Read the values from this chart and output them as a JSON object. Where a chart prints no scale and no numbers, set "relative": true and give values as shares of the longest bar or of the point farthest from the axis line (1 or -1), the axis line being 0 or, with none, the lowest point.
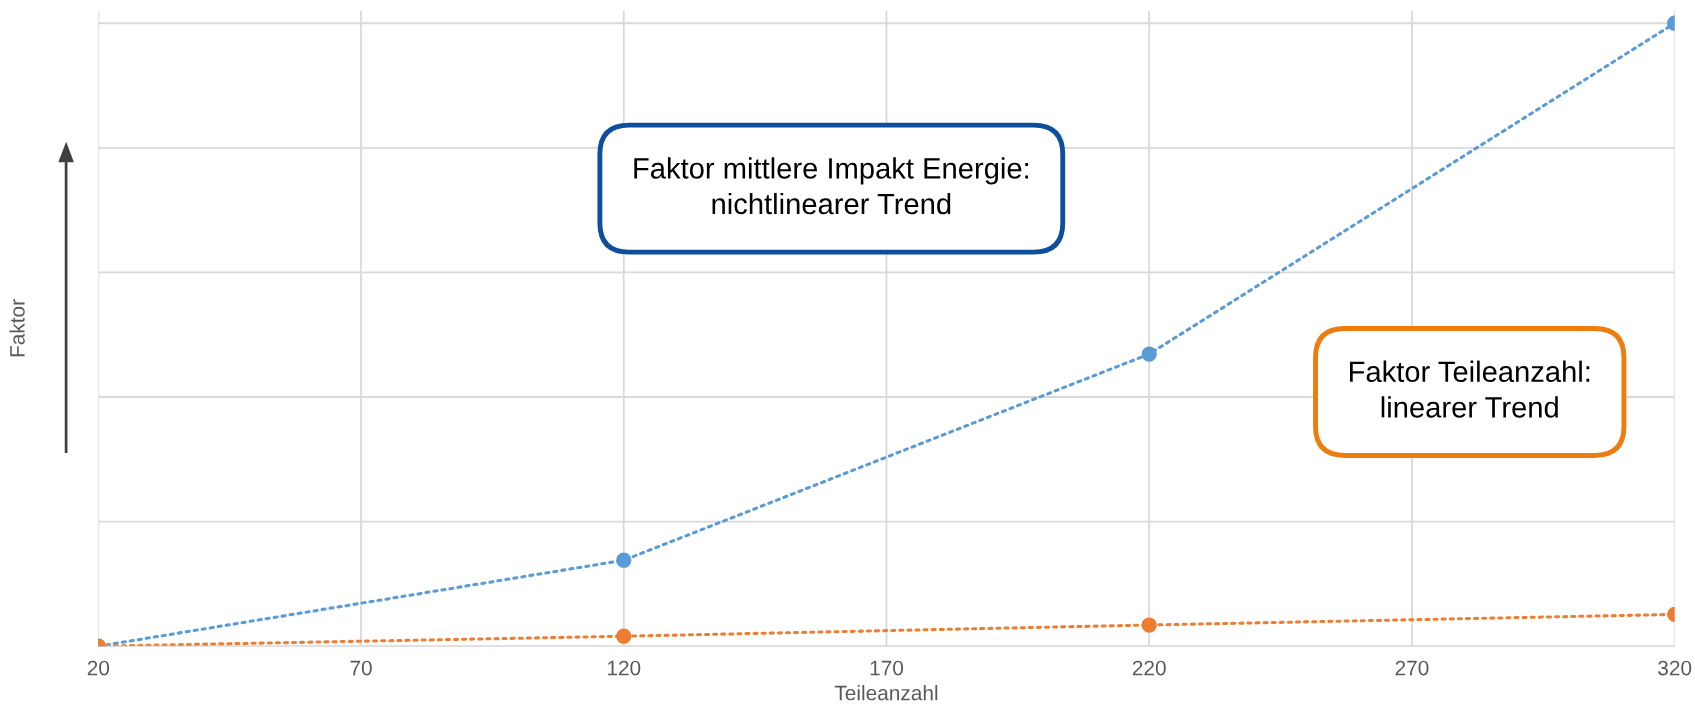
{
  "chart_data": {
    "type": "line",
    "xlabel": "Teileanzahl",
    "ylabel": "Faktor",
    "x": [
      20,
      120,
      220,
      320
    ],
    "xlim": [
      20,
      320
    ],
    "xticks": [
      20,
      70,
      120,
      170,
      220,
      270,
      320
    ],
    "relative": true,
    "grid": true,
    "legend": false,
    "marker": "circle",
    "line_style": "dotted",
    "series": [
      {
        "color": "#5b9bd5",
        "values": [
          0,
          0.138,
          0.469,
          1
        ]
      },
      {
        "color": "#ed7d31",
        "values": [
          0,
          0.016,
          0.034,
          0.051
        ]
      }
    ],
    "annotations": [
      "Faktor mittlere Impakt Energie:\nnichtlinearer Trend",
      "Faktor Teileanzahl:\nlinearer Trend"
    ]
  }
}
